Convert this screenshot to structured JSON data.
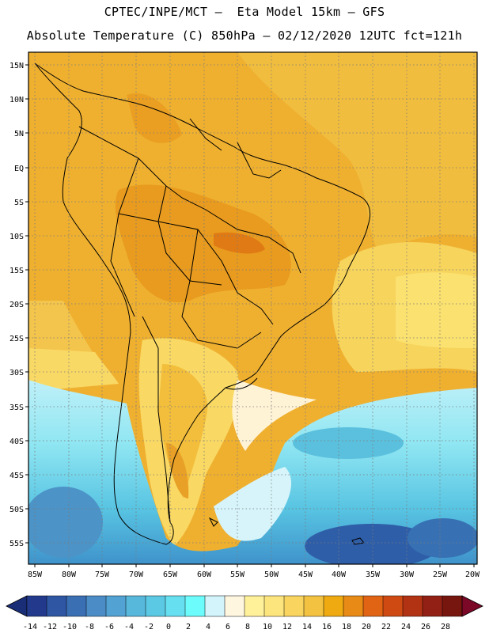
{
  "header": {
    "line1": "CPTEC/INPE/MCT –  Eta Model 15km – GFS",
    "line2": "Absolute Temperature (C) 850hPa – 02/12/2020 12UTC fct=121h"
  },
  "map": {
    "lat_labels": [
      "15N",
      "10N",
      "5N",
      "EQ",
      "5S",
      "10S",
      "15S",
      "20S",
      "25S",
      "30S",
      "35S",
      "40S",
      "45S",
      "50S",
      "55S"
    ],
    "lon_labels": [
      "85W",
      "80W",
      "75W",
      "70W",
      "65W",
      "60W",
      "55W",
      "50W",
      "45W",
      "40W",
      "35W",
      "30W",
      "25W",
      "20W"
    ]
  },
  "colorbar": {
    "ticks": [
      "-14",
      "-12",
      "-10",
      "-8",
      "-6",
      "-4",
      "-2",
      "0",
      "2",
      "4",
      "6",
      "8",
      "10",
      "12",
      "14",
      "16",
      "18",
      "20",
      "22",
      "24",
      "26",
      "28"
    ],
    "colors": [
      "#233a8c",
      "#2f56a2",
      "#3a6fb4",
      "#4b8cc6",
      "#52a3d3",
      "#57b8dc",
      "#5bc9e3",
      "#66dff0",
      "#6cfcfb",
      "#d2f4fa",
      "#fff6e0",
      "#fff19a",
      "#fde57d",
      "#f9d45f",
      "#f3c240",
      "#efaa12",
      "#e88a16",
      "#e06414",
      "#cf4a12",
      "#b23214",
      "#922014",
      "#76160f"
    ],
    "under_color": "#1a2e78",
    "over_color": "#7a0826"
  }
}
